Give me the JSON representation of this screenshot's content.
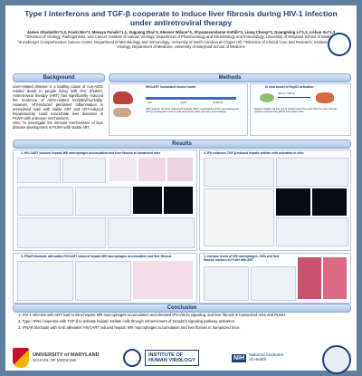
{
  "title": {
    "line1": "Type I interferons and TGF-β cooperate to induce liver fibrosis during HIV-1 infection",
    "line2": "under antiretroviral therapy"
  },
  "authors": {
    "names": "James Ahodantin^1,2, Kouki Nio^1, Masaya Funaki^1,2, Xuguang Zhai^3, Eleanor Wilson^1, Shyamasundaran Kottilil^1, Liang Cheng^3, Guangming Li^1,3, Lishan Su^1,3",
    "affiliations": "^1Division of Virology, Pathogenesis, and Cancer, Institute of Human Virology, Department of Pharmacology and Microbiology and Immunology, University of Maryland School of Medicine. ^2Lineberger Comprehensive Cancer Center, Department of Microbiology and Immunology, University of North Carolina at Chapel Hill. ^3Division of Clinical Care and Research, Institute of Human Virology, Department of Medicine, University of Maryland School of Medicine"
  },
  "sections": {
    "background": "Background",
    "methods": "Methods",
    "results": "Results",
    "conclusion": "Conclusion"
  },
  "background": {
    "text": "Liver-related disease is a leading cause of non-AIDS related death in people living with HIV (PLWH). Antiretroviral therapy (ART) has significantly reduced the incidence of AIDS-related mortality/morbidity. However, HIV-induced persistent inflammation is unresolved even with stable ART and ART-induced hepatotoxicity could exacerbate liver diseases in PLWH with unknown mechanisms.",
    "aim_label": "Aim",
    "aim_text": ": To investigate the immune mechanisms of liver disease development in PLWH with stable ART."
  },
  "methods": {
    "left_title": "HIV/cART humanized mouse model",
    "right_title": "In vitro model of HepG2 activation",
    "legend": "ART regimen: tenofovir disoproxil fumarate (TDF), emtricitabine (FTC) and dolutegravir (DTG); intrahepatic immune cells analyzed by flow cytometry and histology.",
    "right_note": "Hepatic stellate cell line (LX-2) treated with IFN-α and TGF-β in vitro; fibrosis markers measured by qPCR and western blot.",
    "steps": [
      "HIV",
      "cART",
      "Analysis"
    ],
    "treatment": "IFN-α / TGF-β"
  },
  "results": {
    "fig1": "1. HIV-1/ART induced hepatic MΦ macrophages accumulation and liver fibrosis in humanized mice",
    "fig2": "2. IFN enhances TGF-β induced hepatic stellate cells activation in vitro",
    "fig3": "3. IFNAR blockade attenuates HIV/cART induced hepatic MΦ macrophages accumulation and liver fibrosis",
    "fig4": "4. Increase levels of MΦ macrophages, ISGs and liver fibrosis markers in PLWH with ART",
    "sub_labels": [
      "A",
      "B",
      "C",
      "D",
      "E",
      "F"
    ],
    "group_labels": [
      "Mock",
      "HIV",
      "HIV/cART"
    ]
  },
  "conclusion": {
    "items": [
      "1. HIV-1 infection with ART lead to intra-hepatic MΦ macrophages accumulation and elevated IFN-I/ISGs signaling, and liver fibrosis in humanized mice and PLWH.",
      "2. Type I IFNs cooperate with TGF-β to activate hepatic stellate cells through enhancement of Smad2/3 signaling pathway activation.",
      "3. IFNAR blockade with mAb alleviates HIV/cART induced hepatic MΦ macrophages accumulation and liver fibrosis in humanized mice."
    ]
  },
  "logos": {
    "umd_line1": "UNIVERSITY of MARYLAND",
    "umd_line2": "SCHOOL OF MEDICINE",
    "ihv_line1": "INSTITUTE OF",
    "ihv_line2": "HUMAN VIROLOGY",
    "nih_mark": "NIH",
    "nih_line1": "National Institutes",
    "nih_line2": "of Health"
  },
  "colors": {
    "title_blue": "#1f3f7a",
    "border_blue": "#5f7fa0",
    "aim_red": "#c8102e",
    "umd_red": "#c8102e",
    "umd_gold": "#f2b400"
  }
}
